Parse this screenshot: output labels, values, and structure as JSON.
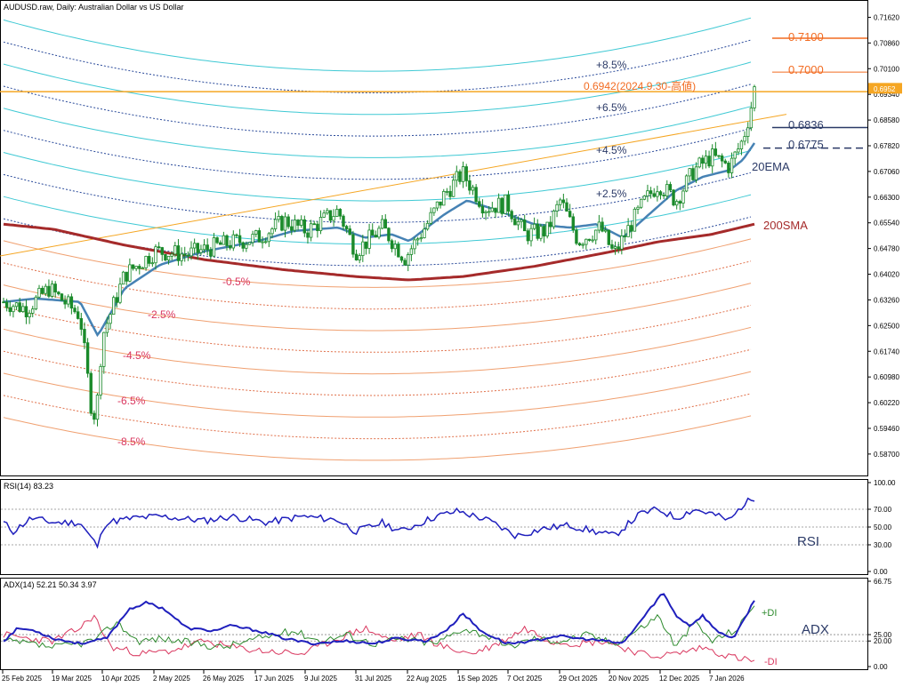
{
  "window": {
    "title": "AUDUSD.raw, Daily:  Australian Dollar vs US Dollar"
  },
  "colors": {
    "background": "#ffffff",
    "grid_band": "#3fc9d4",
    "band_upper_dotted": "#2a4a9a",
    "band_lower": "#f0a070",
    "band_lower_dotted": "#e0704a",
    "sma200": "#a52a2a",
    "ema20": "#4682b4",
    "trendline": "#f5a623",
    "level_orange": "#f26b21",
    "level_navy": "#2b3a67",
    "candle_up": "#1a8a2a",
    "candle_down": "#1a8a2a",
    "rsi_line": "#1f1fbd",
    "adx_line": "#1f1fbd",
    "plus_di": "#2e8b2e",
    "minus_di": "#d9365e",
    "current_price_tag": "#f5a623"
  },
  "main_panel": {
    "price_axis_labels": [
      "0.71620",
      "0.70860",
      "0.70100",
      "0.69340",
      "0.68580",
      "0.67820",
      "0.67060",
      "0.66300",
      "0.65540",
      "0.64780",
      "0.64020",
      "0.63260",
      "0.62500",
      "0.61740",
      "0.60980",
      "0.60220",
      "0.59460",
      "0.58700"
    ],
    "current_price_tag": "0.6952",
    "level_labels": {
      "l7100": "0.7100",
      "l7000": "0.7000",
      "l6942": "0.6942(2024.9.30-高値)",
      "l6836": "0.6836",
      "l6775": "0.6775"
    },
    "band_labels": {
      "p85": "+8.5%",
      "p65": "+6.5%",
      "p45": "+4.5%",
      "p25": "+2.5%",
      "m05": "-0.5%",
      "m25": "-2.5%",
      "m45": "-4.5%",
      "m65": "-6.5%",
      "m85": "-8.5%"
    },
    "indicator_labels": {
      "ema": "20EMA",
      "sma": "200SMA"
    }
  },
  "rsi_panel": {
    "title": "RSI(14) 83.23",
    "axis_labels": [
      "100.00",
      "70.00",
      "50.00",
      "30.00",
      "0.00"
    ],
    "name": "RSI"
  },
  "adx_panel": {
    "title": "ADX(14) 52.21 50.34 3.97",
    "axis_labels": [
      "66.75",
      "25.00",
      "20.00",
      "0.00"
    ],
    "name": "ADX",
    "plus_di_label": "+DI",
    "minus_di_label": "-DI"
  },
  "time_axis_labels": [
    "25 Feb 2025",
    "19 Mar 2025",
    "10 Apr 2025",
    "2 May 2025",
    "26 May 2025",
    "17 Jun 2025",
    "9 Jul 2025",
    "31 Jul 2025",
    "22 Aug 2025",
    "15 Sep 2025",
    "7 Oct 2025",
    "29 Oct 2025",
    "20 Nov 2025",
    "12 Dec 2025",
    "7 Jan 2026"
  ],
  "chart_data": {
    "type": "line",
    "title": "AUDUSD.raw, Daily:  Australian Dollar vs US Dollar",
    "x": [
      "25 Feb 2025",
      "19 Mar 2025",
      "10 Apr 2025",
      "2 May 2025",
      "26 May 2025",
      "17 Jun 2025",
      "9 Jul 2025",
      "31 Jul 2025",
      "22 Aug 2025",
      "15 Sep 2025",
      "7 Oct 2025",
      "29 Oct 2025",
      "20 Nov 2025",
      "12 Dec 2025",
      "7 Jan 2026"
    ],
    "ylim": [
      0.5825,
      0.72
    ],
    "series": [
      {
        "name": "Close",
        "values": [
          0.629,
          0.631,
          0.615,
          0.646,
          0.651,
          0.651,
          0.655,
          0.648,
          0.651,
          0.661,
          0.652,
          0.652,
          0.649,
          0.661,
          0.67
        ]
      },
      {
        "name": "20EMA",
        "values": [
          0.628,
          0.632,
          0.623,
          0.642,
          0.648,
          0.65,
          0.654,
          0.651,
          0.65,
          0.659,
          0.656,
          0.653,
          0.651,
          0.658,
          0.669
        ]
      },
      {
        "name": "200SMA",
        "values": [
          0.655,
          0.653,
          0.651,
          0.649,
          0.647,
          0.645,
          0.643,
          0.642,
          0.642,
          0.642,
          0.643,
          0.645,
          0.647,
          0.65,
          0.653
        ]
      }
    ],
    "levels": [
      0.71,
      0.7,
      0.6942,
      0.6836,
      0.6775
    ],
    "grid": false
  }
}
